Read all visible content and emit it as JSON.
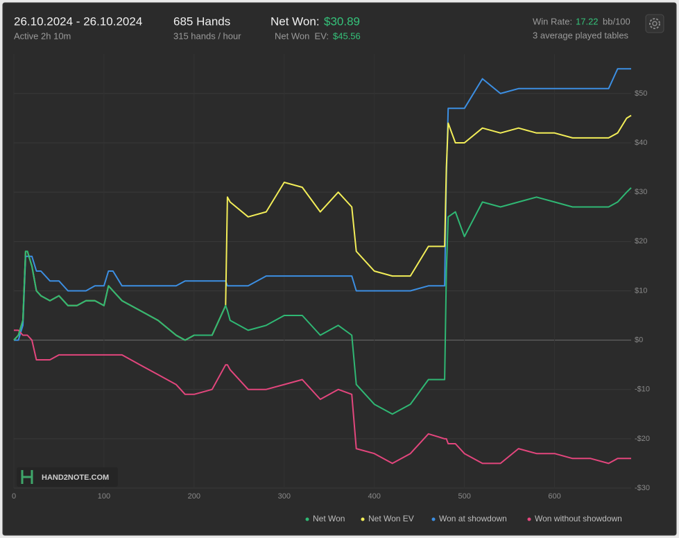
{
  "header": {
    "date_range": "26.10.2024 - 26.10.2024",
    "active": "Active 2h 10m",
    "hands": "685 Hands",
    "hands_per_hour": "315 hands / hour",
    "net_won_label": "Net Won:",
    "net_won_value": "$30.89",
    "net_won_ev_label": "Net Won  EV:",
    "net_won_ev_value": "$45.56",
    "win_rate_label": "Win Rate:",
    "win_rate_value": "17.22",
    "win_rate_unit": "bb/100",
    "tables": "3 average played tables"
  },
  "watermark": "HAND2NOTE.COM",
  "chart_data": {
    "type": "line",
    "x": [
      0,
      5,
      10,
      13,
      15,
      20,
      25,
      30,
      40,
      50,
      60,
      70,
      80,
      90,
      100,
      105,
      110,
      120,
      140,
      160,
      180,
      190,
      200,
      220,
      235,
      237,
      240,
      260,
      280,
      300,
      320,
      340,
      360,
      375,
      380,
      400,
      420,
      440,
      460,
      478,
      480,
      482,
      490,
      500,
      520,
      540,
      560,
      580,
      600,
      620,
      640,
      660,
      670,
      680,
      685
    ],
    "series": [
      {
        "name": "Net Won",
        "color": "#2fb874",
        "values": [
          0,
          1,
          4,
          18,
          18,
          15,
          10,
          9,
          8,
          9,
          7,
          7,
          8,
          8,
          7,
          11,
          10,
          8,
          6,
          4,
          1,
          0,
          1,
          1,
          7,
          6,
          4,
          2,
          3,
          5,
          5,
          1,
          3,
          1,
          -9,
          -13,
          -15,
          -13,
          -8,
          -8,
          14,
          25,
          26,
          21,
          28,
          27,
          28,
          29,
          28,
          27,
          27,
          27,
          28,
          30,
          30.89
        ]
      },
      {
        "name": "Net Won EV",
        "color": "#f3ee58",
        "values": [
          0,
          1,
          4,
          18,
          18,
          15,
          10,
          9,
          8,
          9,
          7,
          7,
          8,
          8,
          7,
          11,
          10,
          8,
          6,
          4,
          1,
          0,
          1,
          1,
          7,
          29,
          28,
          25,
          26,
          32,
          31,
          26,
          30,
          27,
          18,
          14,
          13,
          13,
          19,
          19,
          35,
          44,
          40,
          40,
          43,
          42,
          43,
          42,
          42,
          41,
          41,
          41,
          42,
          45,
          45.56
        ]
      },
      {
        "name": "Won at showdown",
        "color": "#3c8fe3",
        "values": [
          0,
          0,
          3,
          17,
          17,
          17,
          14,
          14,
          12,
          12,
          10,
          10,
          10,
          11,
          11,
          14,
          14,
          11,
          11,
          11,
          11,
          12,
          12,
          12,
          12,
          11,
          11,
          11,
          13,
          13,
          13,
          13,
          13,
          13,
          10,
          10,
          10,
          10,
          11,
          11,
          33,
          47,
          47,
          47,
          53,
          50,
          51,
          51,
          51,
          51,
          51,
          51,
          55,
          55,
          55
        ]
      },
      {
        "name": "Won without showdown",
        "color": "#e3467d",
        "values": [
          2,
          2,
          1,
          1,
          1,
          0,
          -4,
          -4,
          -4,
          -3,
          -3,
          -3,
          -3,
          -3,
          -3,
          -3,
          -3,
          -3,
          -5,
          -7,
          -9,
          -11,
          -11,
          -10,
          -5,
          -5,
          -6,
          -10,
          -10,
          -9,
          -8,
          -12,
          -10,
          -11,
          -22,
          -23,
          -25,
          -23,
          -19,
          -20,
          -20,
          -21,
          -21,
          -23,
          -25,
          -25,
          -22,
          -23,
          -23,
          -24,
          -24,
          -25,
          -24,
          -24,
          -24
        ]
      }
    ],
    "xlim": [
      0,
      685
    ],
    "xticks": [
      0,
      100,
      200,
      300,
      400,
      500,
      600
    ],
    "ylim": [
      -30,
      58
    ],
    "yticks": [
      {
        "value": -30,
        "label": "-$30"
      },
      {
        "value": -20,
        "label": "-$20"
      },
      {
        "value": -10,
        "label": "-$10"
      },
      {
        "value": 0,
        "label": "$0"
      },
      {
        "value": 10,
        "label": "$10"
      },
      {
        "value": 20,
        "label": "$20"
      },
      {
        "value": 30,
        "label": "$30"
      },
      {
        "value": 40,
        "label": "$40"
      },
      {
        "value": 50,
        "label": "$50"
      }
    ],
    "grid": true,
    "legend": "bottom-right"
  }
}
